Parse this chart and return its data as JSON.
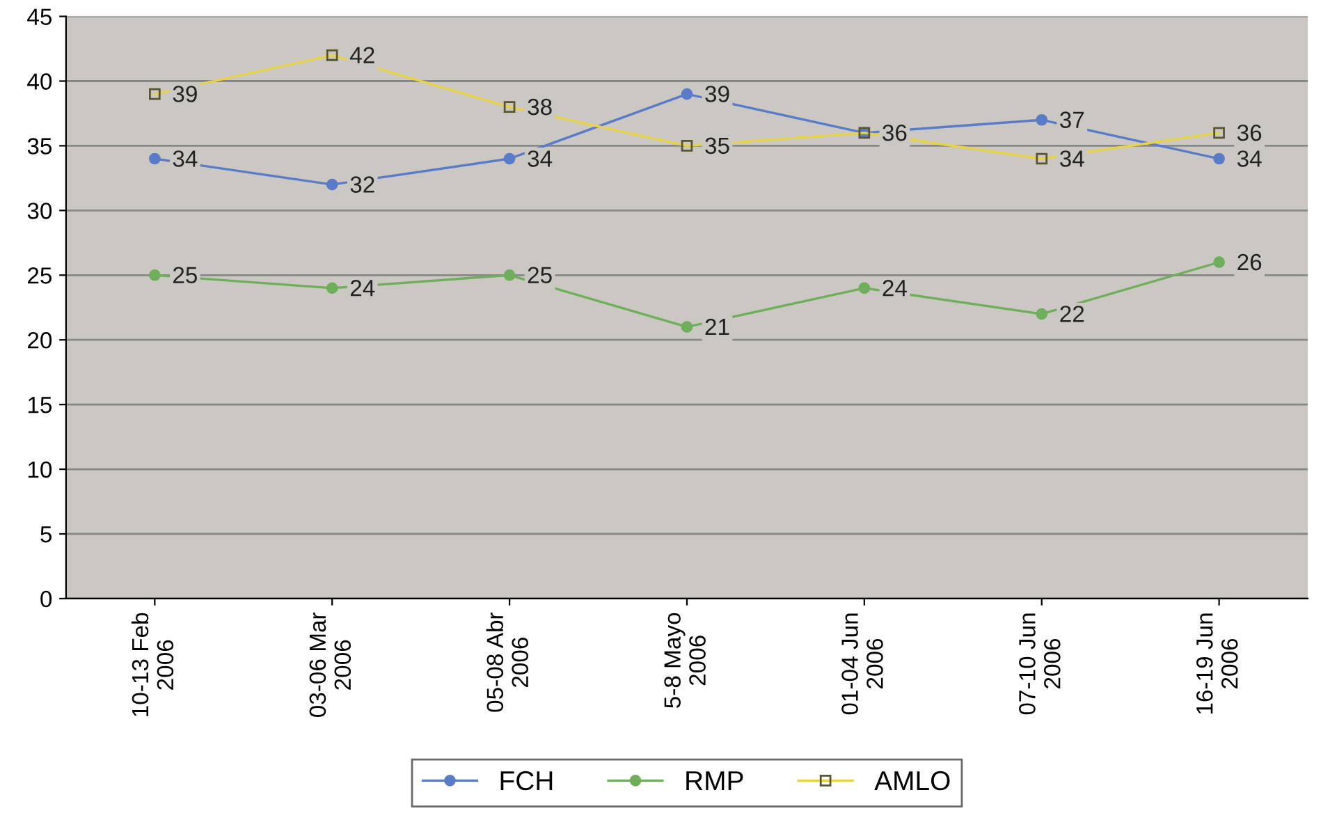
{
  "chart_data": {
    "type": "line",
    "categories": [
      "10-13 Feb\n2006",
      "03-06 Mar\n2006",
      "05-08 Abr\n2006",
      "5-8 Mayo\n2006",
      "01-04 Jun\n2006",
      "07-10 Jun\n2006",
      "16-19 Jun\n2006"
    ],
    "series": [
      {
        "name": "FCH",
        "color": "#5a7cc8",
        "marker": "circle",
        "values": [
          34,
          32,
          34,
          39,
          36,
          37,
          34
        ]
      },
      {
        "name": "RMP",
        "color": "#6fae5a",
        "marker": "circle",
        "values": [
          25,
          24,
          25,
          21,
          24,
          22,
          26
        ]
      },
      {
        "name": "AMLO",
        "color": "#e6d34a",
        "marker": "square",
        "values": [
          39,
          42,
          38,
          35,
          36,
          34,
          36
        ],
        "value_labels": [
          "39",
          "42",
          "38",
          "35",
          null,
          "34",
          "36"
        ]
      }
    ],
    "ylim": [
      0,
      45
    ],
    "yticks": [
      0,
      5,
      10,
      15,
      20,
      25,
      30,
      35,
      40,
      45
    ],
    "grid": "y",
    "legend": "bottom",
    "data_labels": true
  }
}
